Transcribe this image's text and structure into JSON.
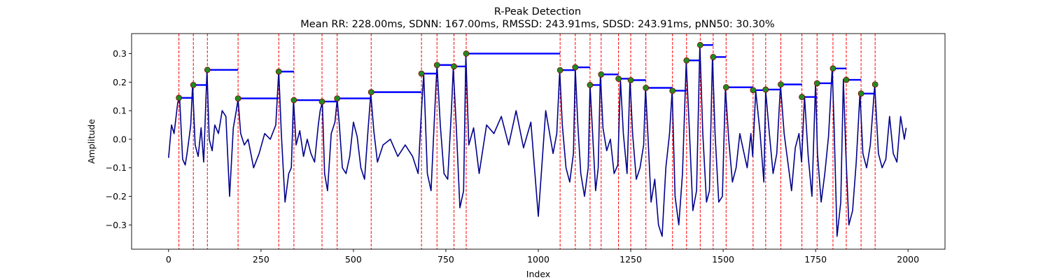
{
  "chart_data": {
    "type": "line",
    "title": "R-Peak Detection",
    "subtitle": "Mean RR: 228.00ms, SDNN: 167.00ms, RMSSD: 243.91ms, SDSD: 243.91ms, pNN50: 30.30%",
    "xlabel": "Index",
    "ylabel": "Amplitude",
    "xlim": [
      -100,
      2100
    ],
    "ylim": [
      -0.385,
      0.37
    ],
    "xticks": [
      0,
      250,
      500,
      750,
      1000,
      1250,
      1500,
      1750,
      2000
    ],
    "yticks": [
      -0.3,
      -0.2,
      -0.1,
      0.0,
      0.1,
      0.2,
      0.3
    ],
    "xtick_labels": [
      "0",
      "250",
      "500",
      "750",
      "1000",
      "1250",
      "1500",
      "1750",
      "2000"
    ],
    "ytick_labels": [
      "−0.3",
      "−0.2",
      "−0.1",
      "0.0",
      "0.1",
      "0.2",
      "0.3"
    ],
    "grid": false,
    "colors": {
      "signal": "#00008b",
      "peak_line": "#ff0000",
      "peak_marker_fill": "#228b22",
      "peak_marker_edge": "#8b0000",
      "rr_segment": "#0000ff"
    },
    "signal": {
      "x": [
        0,
        8,
        15,
        25,
        30,
        38,
        45,
        50,
        55,
        60,
        65,
        72,
        80,
        88,
        95,
        100,
        104,
        110,
        118,
        125,
        135,
        145,
        155,
        165,
        175,
        182,
        188,
        195,
        205,
        215,
        230,
        245,
        260,
        275,
        290,
        298,
        305,
        315,
        325,
        332,
        338,
        345,
        355,
        365,
        375,
        385,
        395,
        405,
        410,
        416,
        422,
        430,
        440,
        450,
        456,
        462,
        470,
        480,
        490,
        500,
        510,
        520,
        530,
        540,
        547,
        555,
        565,
        580,
        600,
        620,
        640,
        660,
        675,
        684,
        690,
        700,
        710,
        720,
        726,
        735,
        745,
        755,
        765,
        770,
        778,
        788,
        798,
        804,
        812,
        825,
        840,
        860,
        880,
        900,
        920,
        940,
        960,
        980,
        1000,
        1020,
        1040,
        1050,
        1058,
        1065,
        1075,
        1085,
        1095,
        1100,
        1107,
        1115,
        1125,
        1135,
        1140,
        1147,
        1155,
        1162,
        1168,
        1175,
        1185,
        1195,
        1205,
        1215,
        1222,
        1230,
        1240,
        1248,
        1255,
        1265,
        1275,
        1285,
        1290,
        1297,
        1305,
        1315,
        1325,
        1335,
        1345,
        1355,
        1362,
        1370,
        1380,
        1390,
        1400,
        1408,
        1418,
        1428,
        1437,
        1445,
        1455,
        1463,
        1471,
        1478,
        1488,
        1498,
        1506,
        1515,
        1525,
        1535,
        1545,
        1555,
        1565,
        1575,
        1580,
        1588,
        1600,
        1610,
        1615,
        1625,
        1635,
        1645,
        1655,
        1665,
        1675,
        1685,
        1695,
        1705,
        1712,
        1720,
        1730,
        1740,
        1750,
        1755,
        1765,
        1775,
        1785,
        1795,
        1800,
        1808,
        1818,
        1825,
        1832,
        1840,
        1850,
        1860,
        1870,
        1878,
        1888,
        1898,
        1910,
        1920,
        1930,
        1940,
        1950,
        1960,
        1970,
        1980,
        1990,
        1995
      ],
      "y": [
        -0.065,
        0.05,
        0.02,
        0.13,
        0.14,
        -0.07,
        -0.09,
        -0.05,
        0.0,
        0.05,
        0.19,
        -0.02,
        -0.06,
        0.04,
        -0.08,
        0.1,
        0.24,
        0.0,
        -0.04,
        0.05,
        0.02,
        0.1,
        0.08,
        -0.2,
        0.04,
        0.09,
        0.14,
        0.02,
        -0.02,
        0.0,
        -0.1,
        -0.05,
        0.02,
        0.0,
        0.05,
        0.24,
        0.02,
        -0.22,
        -0.12,
        -0.1,
        0.14,
        -0.02,
        0.03,
        -0.06,
        0.0,
        -0.05,
        -0.08,
        0.05,
        0.1,
        0.13,
        -0.12,
        -0.18,
        0.02,
        0.06,
        0.14,
        0.05,
        -0.1,
        -0.12,
        -0.06,
        0.06,
        0.01,
        -0.1,
        -0.14,
        0.04,
        0.16,
        0.03,
        -0.08,
        -0.02,
        0.0,
        -0.06,
        -0.02,
        -0.06,
        -0.12,
        0.1,
        0.23,
        -0.12,
        -0.18,
        0.1,
        0.26,
        0.05,
        -0.12,
        -0.14,
        0.1,
        0.25,
        0.05,
        -0.24,
        -0.18,
        0.3,
        -0.02,
        0.04,
        -0.12,
        0.05,
        0.02,
        0.08,
        -0.02,
        0.1,
        -0.03,
        0.06,
        -0.27,
        0.1,
        -0.05,
        0.02,
        0.24,
        0.05,
        -0.1,
        -0.15,
        -0.05,
        0.25,
        0.05,
        -0.12,
        -0.2,
        -0.1,
        0.19,
        0.02,
        -0.18,
        -0.1,
        0.23,
        0.04,
        -0.04,
        0.0,
        -0.12,
        -0.09,
        0.21,
        0.02,
        -0.12,
        0.21,
        0.02,
        -0.14,
        -0.1,
        -0.02,
        0.18,
        0.0,
        -0.22,
        -0.14,
        -0.3,
        -0.34,
        -0.1,
        0.02,
        0.17,
        -0.2,
        -0.3,
        -0.12,
        0.27,
        0.05,
        -0.25,
        -0.18,
        0.33,
        0.02,
        -0.22,
        -0.18,
        0.29,
        0.02,
        -0.22,
        -0.2,
        0.18,
        0.0,
        -0.15,
        -0.1,
        0.02,
        -0.04,
        -0.1,
        0.02,
        -0.06,
        0.17,
        0.02,
        -0.15,
        0.17,
        0.02,
        -0.12,
        -0.05,
        0.19,
        0.02,
        -0.08,
        -0.18,
        -0.03,
        0.02,
        -0.08,
        0.15,
        -0.06,
        -0.2,
        0.2,
        -0.05,
        -0.22,
        -0.12,
        0.01,
        0.25,
        0.05,
        -0.34,
        -0.22,
        0.21,
        -0.05,
        -0.3,
        -0.25,
        -0.08,
        0.16,
        -0.05,
        -0.1,
        -0.02,
        0.19,
        -0.05,
        -0.1,
        -0.07,
        0.08,
        -0.05,
        -0.08,
        0.08,
        0.0,
        0.04
      ]
    },
    "peaks": {
      "x": [
        28,
        67,
        105,
        188,
        298,
        339,
        415,
        456,
        548,
        684,
        726,
        772,
        805,
        1059,
        1100,
        1140,
        1170,
        1217,
        1250,
        1291,
        1363,
        1401,
        1438,
        1473,
        1508,
        1581,
        1615,
        1656,
        1713,
        1754,
        1797,
        1833,
        1873,
        1911
      ],
      "y": [
        0.145,
        0.19,
        0.243,
        0.143,
        0.237,
        0.137,
        0.132,
        0.143,
        0.165,
        0.23,
        0.26,
        0.255,
        0.3,
        0.242,
        0.252,
        0.19,
        0.227,
        0.212,
        0.207,
        0.18,
        0.17,
        0.276,
        0.33,
        0.288,
        0.182,
        0.172,
        0.174,
        0.192,
        0.148,
        0.196,
        0.248,
        0.208,
        0.16,
        0.192
      ]
    },
    "rr_segments": [
      {
        "x0": 28,
        "x1": 67,
        "y": 0.145
      },
      {
        "x0": 67,
        "x1": 105,
        "y": 0.19
      },
      {
        "x0": 105,
        "x1": 188,
        "y": 0.243
      },
      {
        "x0": 188,
        "x1": 298,
        "y": 0.143
      },
      {
        "x0": 298,
        "x1": 339,
        "y": 0.237
      },
      {
        "x0": 339,
        "x1": 415,
        "y": 0.137
      },
      {
        "x0": 415,
        "x1": 456,
        "y": 0.132
      },
      {
        "x0": 456,
        "x1": 548,
        "y": 0.143
      },
      {
        "x0": 548,
        "x1": 684,
        "y": 0.165
      },
      {
        "x0": 684,
        "x1": 726,
        "y": 0.23
      },
      {
        "x0": 726,
        "x1": 772,
        "y": 0.26
      },
      {
        "x0": 772,
        "x1": 805,
        "y": 0.255
      },
      {
        "x0": 805,
        "x1": 1059,
        "y": 0.3
      },
      {
        "x0": 1059,
        "x1": 1100,
        "y": 0.242
      },
      {
        "x0": 1100,
        "x1": 1140,
        "y": 0.252
      },
      {
        "x0": 1140,
        "x1": 1170,
        "y": 0.19
      },
      {
        "x0": 1170,
        "x1": 1217,
        "y": 0.227
      },
      {
        "x0": 1217,
        "x1": 1250,
        "y": 0.212
      },
      {
        "x0": 1250,
        "x1": 1291,
        "y": 0.207
      },
      {
        "x0": 1291,
        "x1": 1363,
        "y": 0.18
      },
      {
        "x0": 1363,
        "x1": 1401,
        "y": 0.17
      },
      {
        "x0": 1401,
        "x1": 1438,
        "y": 0.276
      },
      {
        "x0": 1438,
        "x1": 1473,
        "y": 0.33
      },
      {
        "x0": 1473,
        "x1": 1508,
        "y": 0.288
      },
      {
        "x0": 1508,
        "x1": 1581,
        "y": 0.182
      },
      {
        "x0": 1581,
        "x1": 1615,
        "y": 0.172
      },
      {
        "x0": 1615,
        "x1": 1656,
        "y": 0.174
      },
      {
        "x0": 1656,
        "x1": 1713,
        "y": 0.192
      },
      {
        "x0": 1713,
        "x1": 1754,
        "y": 0.148
      },
      {
        "x0": 1754,
        "x1": 1797,
        "y": 0.196
      },
      {
        "x0": 1797,
        "x1": 1833,
        "y": 0.248
      },
      {
        "x0": 1833,
        "x1": 1873,
        "y": 0.208
      },
      {
        "x0": 1873,
        "x1": 1911,
        "y": 0.16
      }
    ]
  }
}
